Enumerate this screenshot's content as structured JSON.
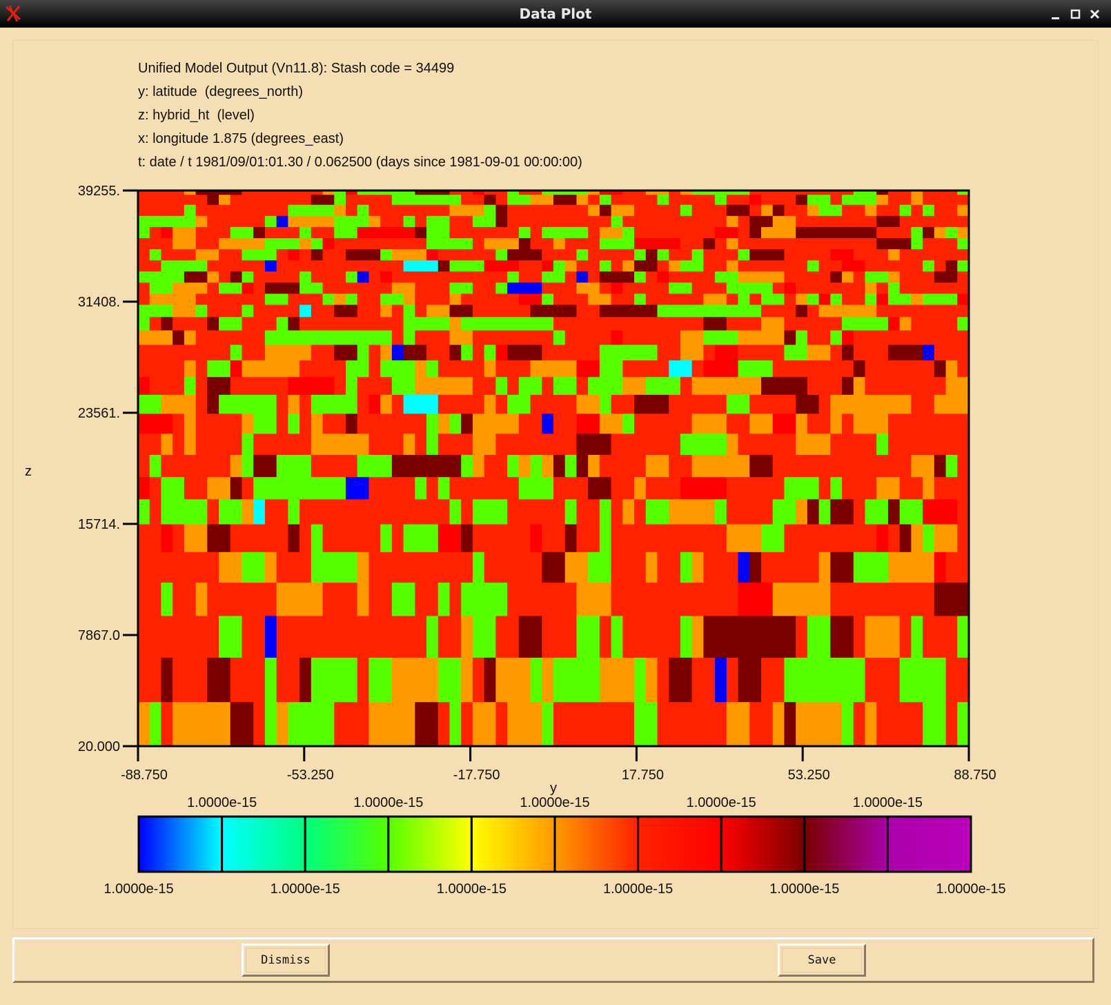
{
  "window": {
    "title": "Data Plot",
    "icon": "xconv-logo-icon",
    "controls": [
      "minimize-icon",
      "maximize-icon",
      "close-icon"
    ]
  },
  "header_lines": [
    "Unified Model Output (Vn11.8): Stash code = 34499",
    "y: latitude  (degrees_north)",
    "z: hybrid_ht  (level)",
    "x: longitude 1.875 (degrees_east)",
    "t: date / t 1981/09/01:01.30 / 0.062500 (days since 1981-09-01 00:00:00)"
  ],
  "chart_data": {
    "type": "heatmap",
    "xlabel": "y",
    "ylabel": "z",
    "x_ticks": [
      "-88.750",
      "-53.250",
      "-17.750",
      "17.750",
      "53.250",
      "88.750"
    ],
    "y_ticks": [
      "20.000",
      "7867.0",
      "15714.",
      "23561.",
      "31408.",
      "39255."
    ],
    "x_range": [
      -88.75,
      88.75
    ],
    "y_range": [
      20,
      39255
    ],
    "colorbar": {
      "colors": [
        "#0000ff",
        "#00ffff",
        "#00ff80",
        "#55ff00",
        "#ffff00",
        "#ff9900",
        "#ff2200",
        "#ff0000",
        "#7a0000",
        "#aa00aa"
      ],
      "boundary_labels": [
        "1.0000e-15",
        "1.0000e-15",
        "1.0000e-15",
        "1.0000e-15",
        "1.0000e-15",
        "1.0000e-15",
        "1.0000e-15",
        "1.0000e-15",
        "1.0000e-15",
        "1.0000e-15",
        "1.0000e-15"
      ]
    }
  },
  "buttons": {
    "dismiss": "Dismiss",
    "save": "Save"
  }
}
